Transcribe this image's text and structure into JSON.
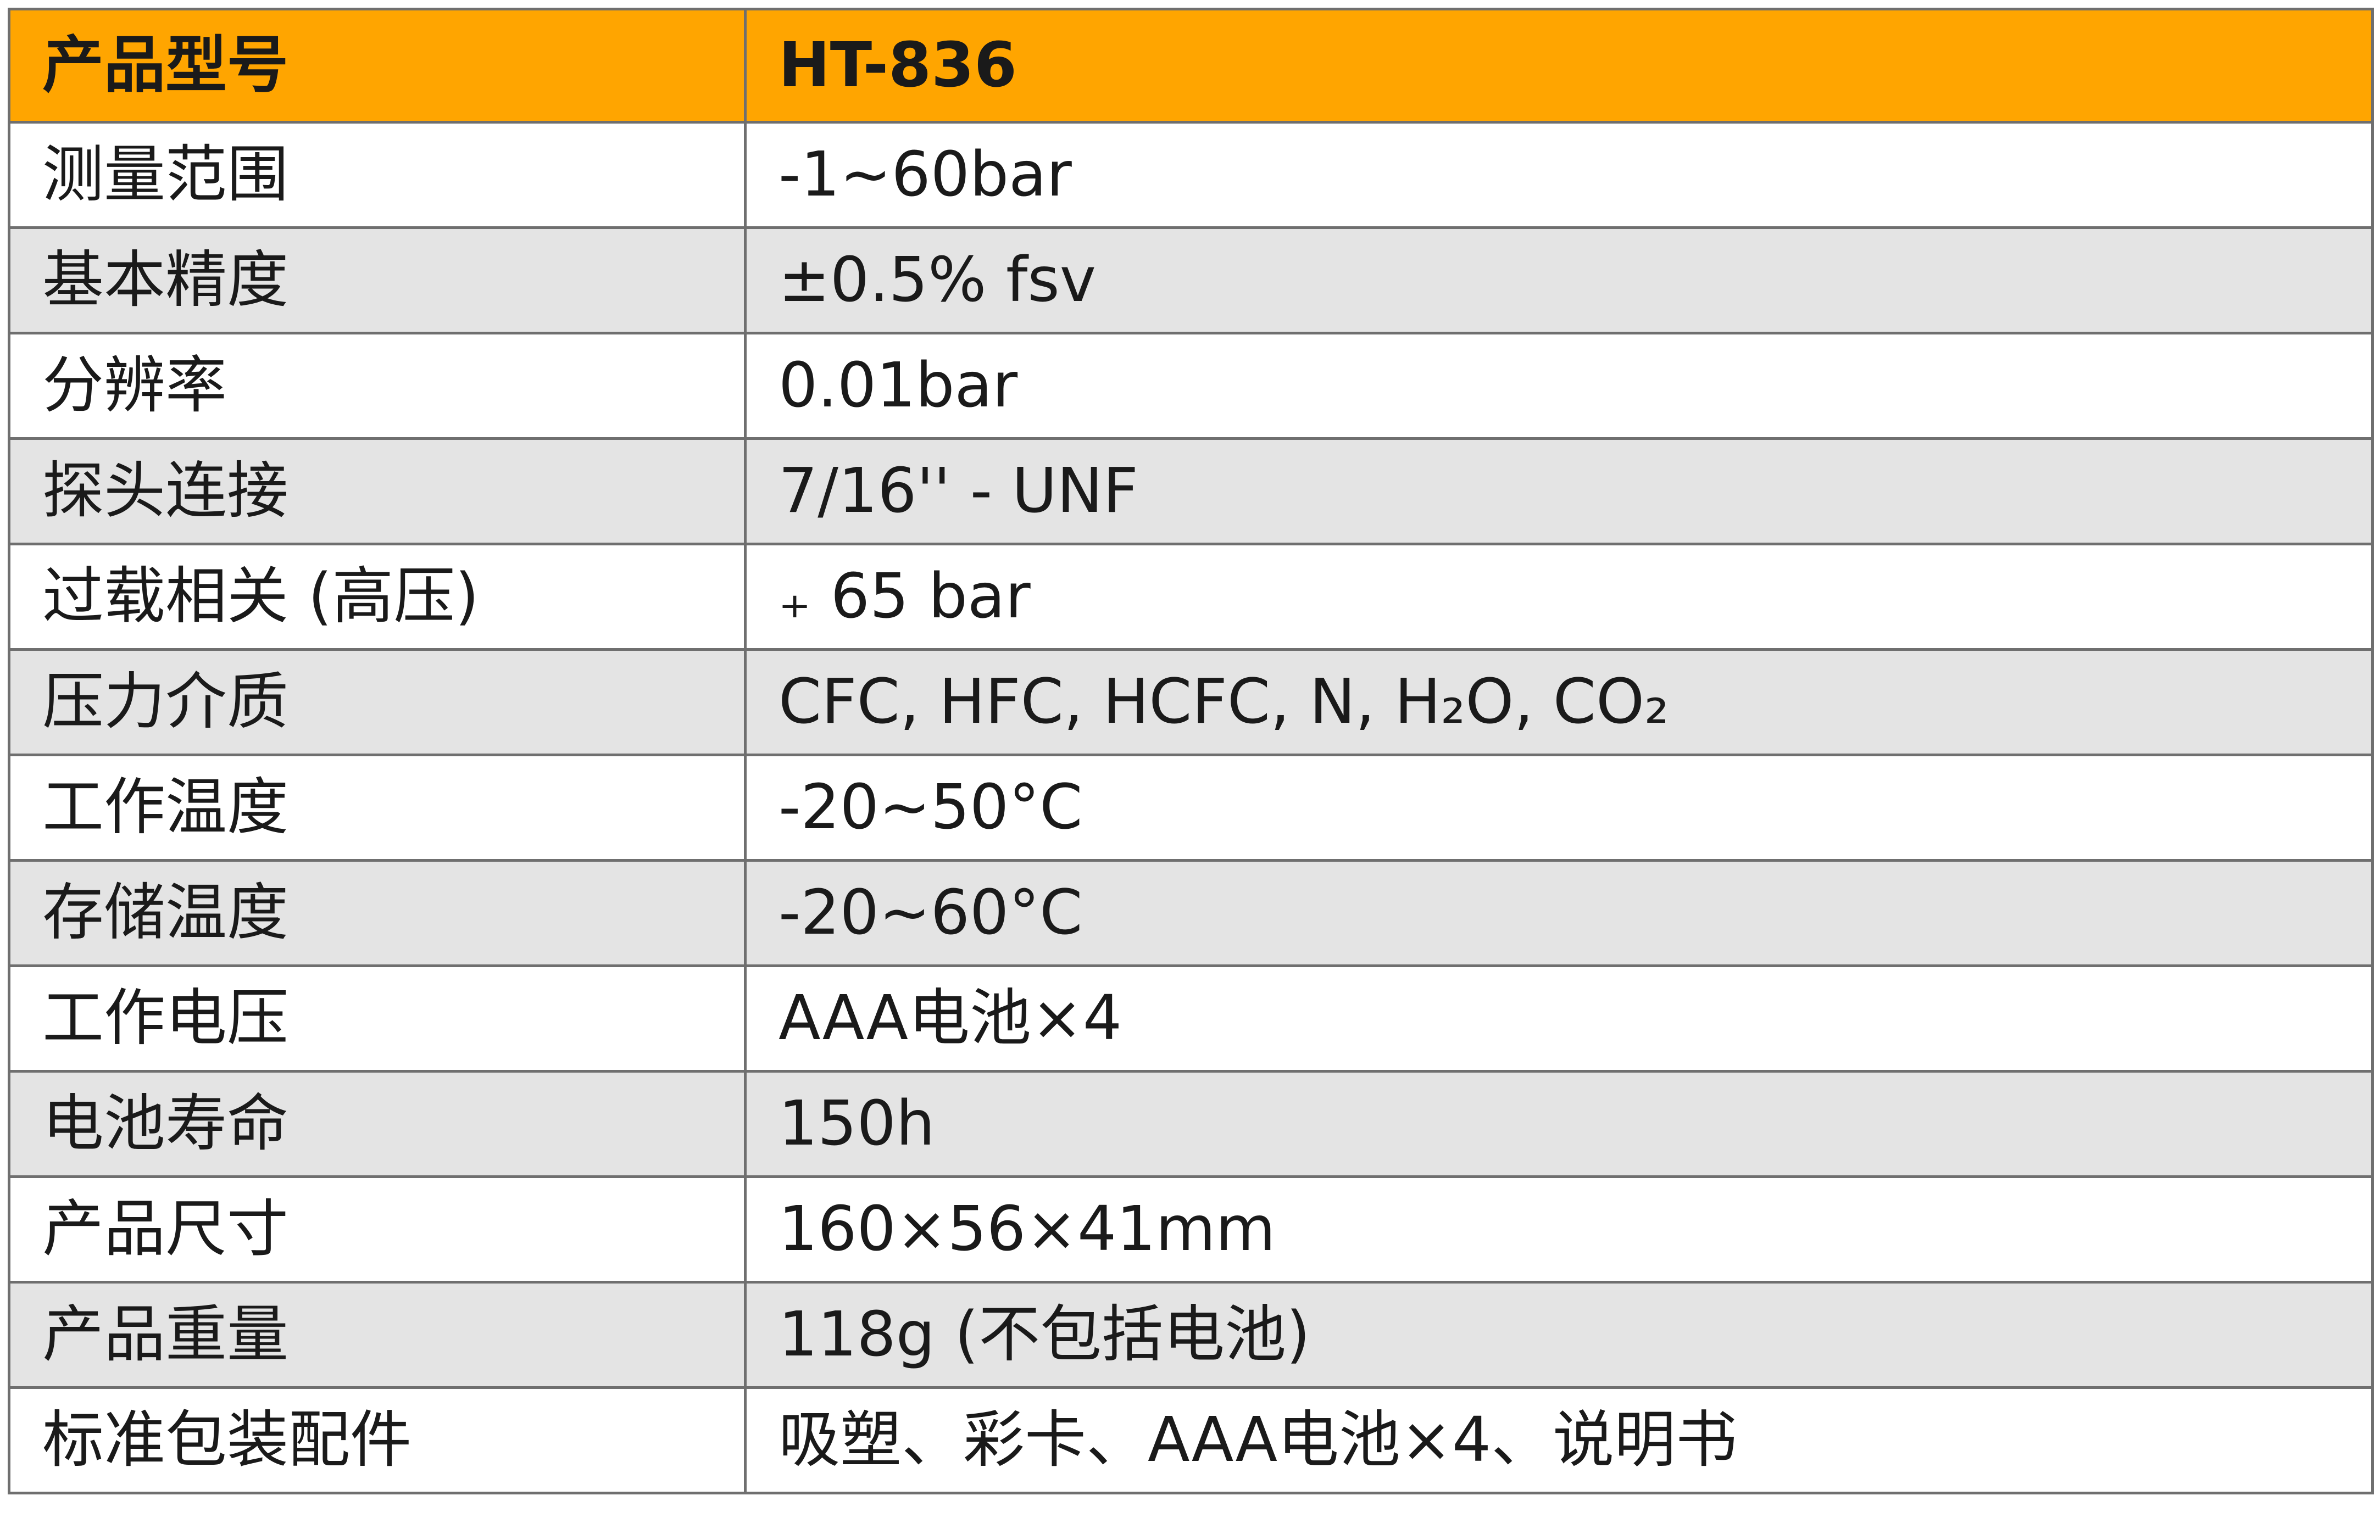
{
  "header": {
    "label": "产品型号",
    "value": "HT-836"
  },
  "rows": [
    {
      "label": "测量范围",
      "value": "-1~60bar"
    },
    {
      "label": "基本精度",
      "value": "±0.5% fsv"
    },
    {
      "label": "分辨率",
      "value": "0.01bar"
    },
    {
      "label": "探头连接",
      "value": "7/16'' - UNF"
    },
    {
      "label": "过载相关 (高压)",
      "value": "₊ 65 bar"
    },
    {
      "label": "压力介质",
      "value": "CFC, HFC, HCFC, N, H₂O, CO₂"
    },
    {
      "label": "工作温度",
      "value": "-20~50°C"
    },
    {
      "label": "存储温度",
      "value": "-20~60°C"
    },
    {
      "label": "工作电压",
      "value": "AAA电池×4"
    },
    {
      "label": "电池寿命",
      "value": "150h"
    },
    {
      "label": "产品尺寸",
      "value": "160×56×41mm"
    },
    {
      "label": "产品重量",
      "value": "118g (不包括电池)"
    },
    {
      "label": "标准包装配件",
      "value": "吸塑、彩卡、AAA电池×4、说明书"
    }
  ],
  "colors": {
    "header_background": "#ffa500",
    "shaded_row_background": "#e4e4e4",
    "border": "#6f6f6f"
  }
}
